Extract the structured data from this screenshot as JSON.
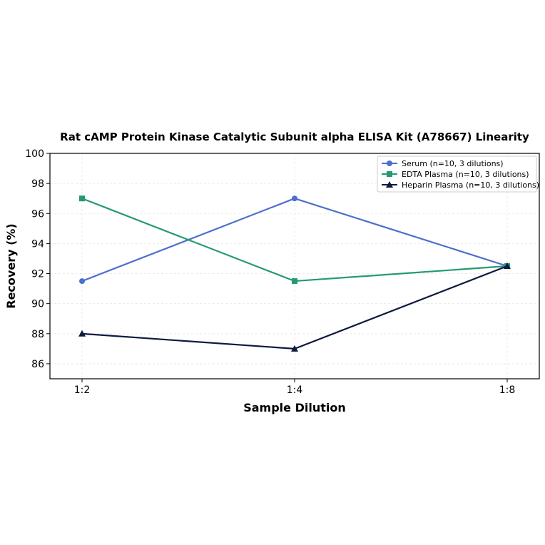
{
  "chart_data": {
    "type": "line",
    "title": "Rat cAMP Protein Kinase Catalytic Subunit alpha ELISA Kit (A78667) Linearity",
    "xlabel": "Sample Dilution",
    "ylabel": "Recovery (%)",
    "categories": [
      "1:2",
      "1:4",
      "1:8"
    ],
    "ylim": [
      85,
      100
    ],
    "yticks": [
      86,
      88,
      90,
      92,
      94,
      96,
      98,
      100
    ],
    "grid": true,
    "legend_position": "top-right",
    "series": [
      {
        "name": "Serum (n=10, 3 dilutions)",
        "values": [
          91.5,
          97.0,
          92.5
        ],
        "color": "#4c6fcd",
        "marker": "circle"
      },
      {
        "name": "EDTA Plasma (n=10, 3 dilutions)",
        "values": [
          97.0,
          91.5,
          92.5
        ],
        "color": "#239a74",
        "marker": "square"
      },
      {
        "name": "Heparin Plasma (n=10, 3 dilutions)",
        "values": [
          88.0,
          87.0,
          92.5
        ],
        "color": "#0d1a3e",
        "marker": "triangle"
      }
    ]
  }
}
